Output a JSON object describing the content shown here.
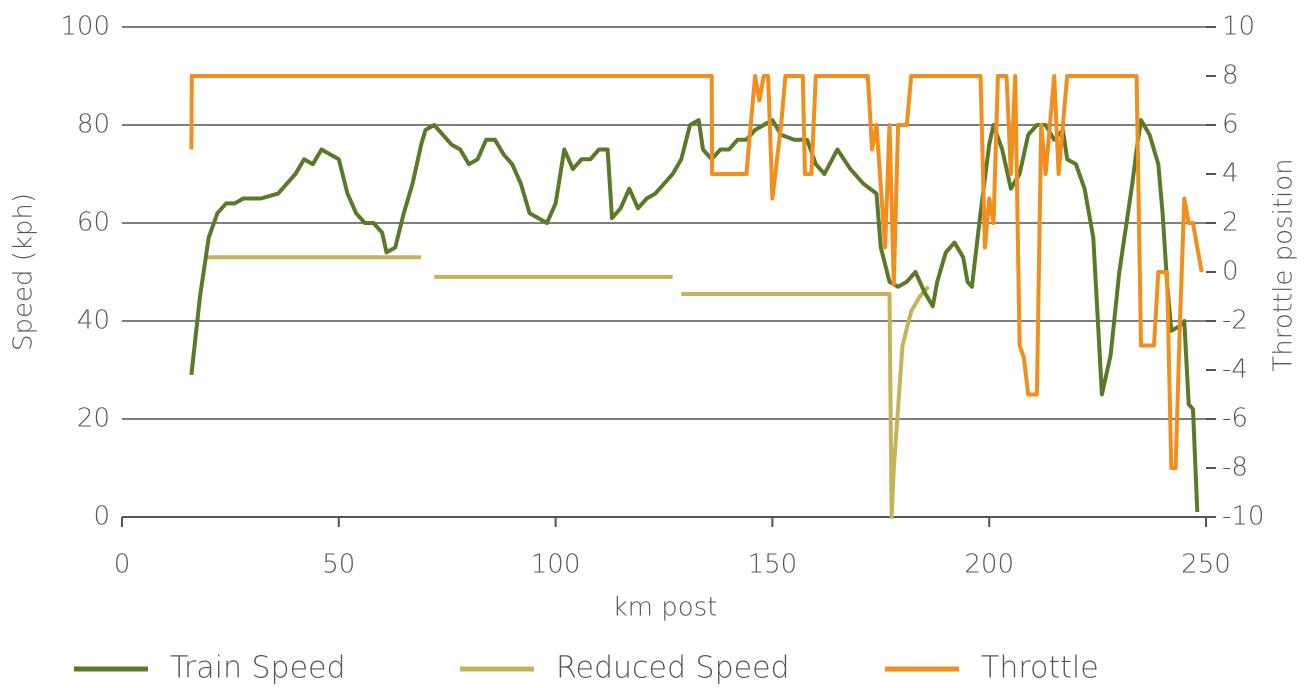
{
  "chart_data": {
    "type": "line",
    "xlabel": "km post",
    "ylabel": "Speed (kph)",
    "y2label": "Throttle position",
    "xlim": [
      0,
      250
    ],
    "xticks": [
      0,
      50,
      100,
      150,
      200,
      250
    ],
    "ylim": [
      0,
      100
    ],
    "yticks": [
      0,
      20,
      40,
      60,
      80,
      100
    ],
    "y2lim": [
      -10,
      10
    ],
    "y2ticks": [
      -10,
      -8,
      -6,
      -4,
      -2,
      0,
      2,
      4,
      6,
      8,
      10
    ],
    "grid": true,
    "legend": "bottom",
    "series": [
      {
        "name": "Train Speed",
        "color": "#5a7a2a",
        "x": [
          16,
          18,
          20,
          22,
          24,
          26,
          28,
          32,
          36,
          40,
          42,
          44,
          46,
          48,
          50,
          52,
          54,
          56,
          58,
          60,
          61,
          63,
          65,
          67,
          69,
          70,
          72,
          74,
          76,
          78,
          80,
          82,
          84,
          86,
          88,
          90,
          92,
          94,
          96,
          98,
          100,
          102,
          104,
          106,
          108,
          110,
          112,
          113,
          115,
          117,
          119,
          121,
          123,
          125,
          127,
          129,
          131,
          133,
          134,
          136,
          138,
          140,
          142,
          144,
          146,
          148,
          150,
          152,
          155,
          158,
          160,
          162,
          165,
          168,
          171,
          174,
          175,
          177,
          179,
          181,
          183,
          185,
          187,
          188,
          190,
          192,
          194,
          195,
          196,
          198,
          200,
          201,
          203,
          205,
          207,
          209,
          211,
          213,
          215,
          217,
          218,
          220,
          222,
          224,
          226,
          228,
          230,
          232,
          233,
          234,
          235,
          237,
          239,
          240,
          241,
          242,
          244,
          245,
          246,
          247,
          248
        ],
        "values": [
          29,
          45,
          57,
          62,
          64,
          64,
          65,
          65,
          66,
          70,
          73,
          72,
          75,
          74,
          73,
          66,
          62,
          60,
          60,
          58,
          54,
          55,
          62,
          68,
          76,
          79,
          80,
          78,
          76,
          75,
          72,
          73,
          77,
          77,
          74,
          72,
          68,
          62,
          61,
          60,
          64,
          75,
          71,
          73,
          73,
          75,
          75,
          61,
          63,
          67,
          63,
          65,
          66,
          68,
          70,
          73,
          80,
          81,
          75,
          73,
          75,
          75,
          77,
          77,
          79,
          80,
          81,
          78,
          77,
          77,
          72,
          70,
          75,
          71,
          68,
          66,
          55,
          48,
          47,
          48,
          50,
          46,
          43,
          48,
          54,
          56,
          53,
          48,
          47,
          62,
          76,
          80,
          75,
          67,
          70,
          78,
          80,
          80,
          77,
          79,
          73,
          72,
          67,
          57,
          25,
          33,
          50,
          62,
          68,
          75,
          81,
          78,
          72,
          62,
          48,
          38,
          39,
          40,
          23,
          22,
          1
        ]
      },
      {
        "name": "Reduced Speed",
        "color": "#c4b35a",
        "x": [
          19,
          69,
          70,
          72,
          127,
          128,
          129,
          177,
          177.5,
          178,
          180,
          182,
          184,
          186
        ],
        "values": [
          53,
          53,
          null,
          49,
          49,
          null,
          45.5,
          45.5,
          0,
          10,
          35,
          42,
          45,
          47
        ]
      },
      {
        "name": "Throttle",
        "color": "#f28e1c",
        "axis": "y2",
        "x": [
          16,
          16.1,
          136,
          136.1,
          144,
          145,
          146,
          147,
          148,
          149,
          150,
          152,
          153,
          157,
          157.5,
          159,
          160,
          172,
          173,
          174,
          176,
          177,
          178,
          179,
          181,
          182,
          198,
          199,
          200,
          201,
          202,
          204,
          205,
          206,
          207,
          208,
          209,
          211,
          212,
          213,
          214,
          215,
          216,
          217,
          218,
          234,
          235,
          238,
          239,
          241,
          242,
          243,
          244,
          245,
          246,
          247,
          248,
          249
        ],
        "values": [
          5,
          8,
          8,
          4,
          4,
          6,
          8,
          7,
          8,
          8,
          3,
          6,
          8,
          8,
          4,
          4,
          8,
          8,
          5,
          6,
          1,
          6,
          -0.5,
          6,
          6,
          8,
          8,
          1,
          3,
          2,
          8,
          8,
          4,
          8,
          -3,
          -3.5,
          -5,
          -5,
          6,
          4,
          6,
          8,
          4,
          6,
          8,
          8,
          -3,
          -3,
          0,
          0,
          -8,
          -8,
          -2,
          3,
          2,
          2,
          1,
          0
        ]
      }
    ]
  }
}
